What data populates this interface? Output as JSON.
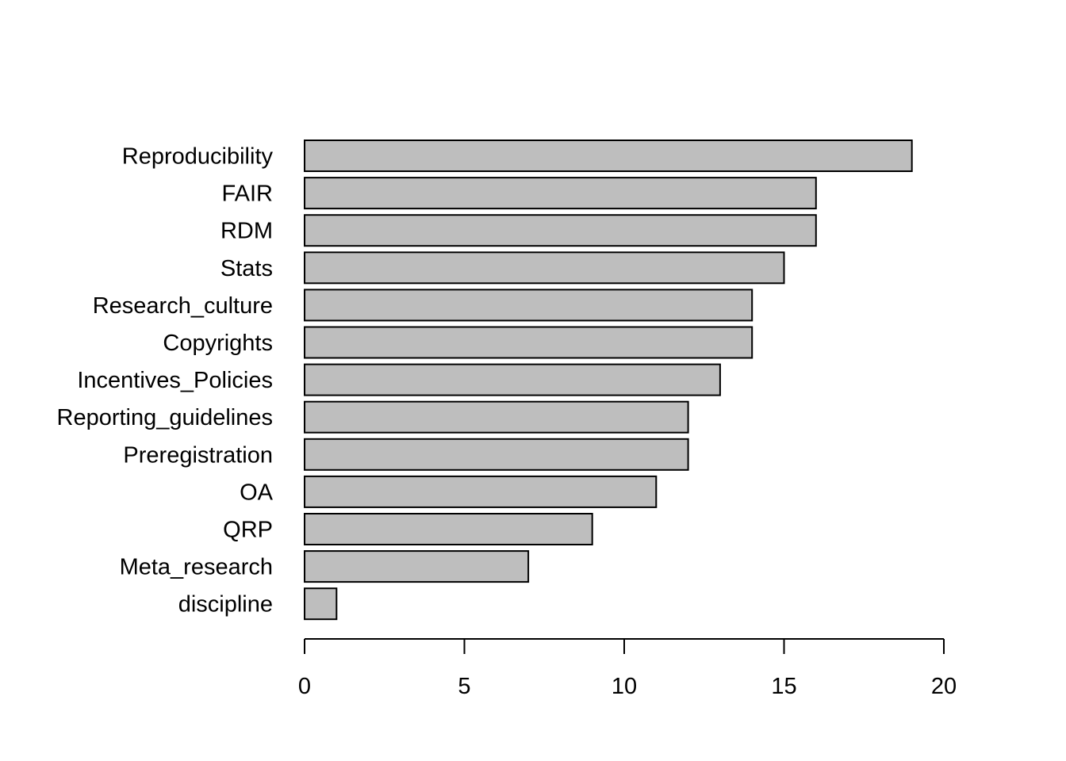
{
  "chart_data": {
    "type": "bar",
    "orientation": "horizontal",
    "categories": [
      "Reproducibility",
      "FAIR",
      "RDM",
      "Stats",
      "Research_culture",
      "Copyrights",
      "Incentives_Policies",
      "Reporting_guidelines",
      "Preregistration",
      "OA",
      "QRP",
      "Meta_research",
      "discipline"
    ],
    "values": [
      19,
      16,
      16,
      15,
      14,
      14,
      13,
      12,
      12,
      11,
      9,
      7,
      1
    ],
    "title": "",
    "xlabel": "",
    "ylabel": "",
    "xlim": [
      0,
      20
    ],
    "x_ticks": [
      "0",
      "5",
      "10",
      "15",
      "20"
    ],
    "grid": false,
    "legend": "none",
    "bar_fill": "#bebebe",
    "bar_stroke": "#000000"
  }
}
